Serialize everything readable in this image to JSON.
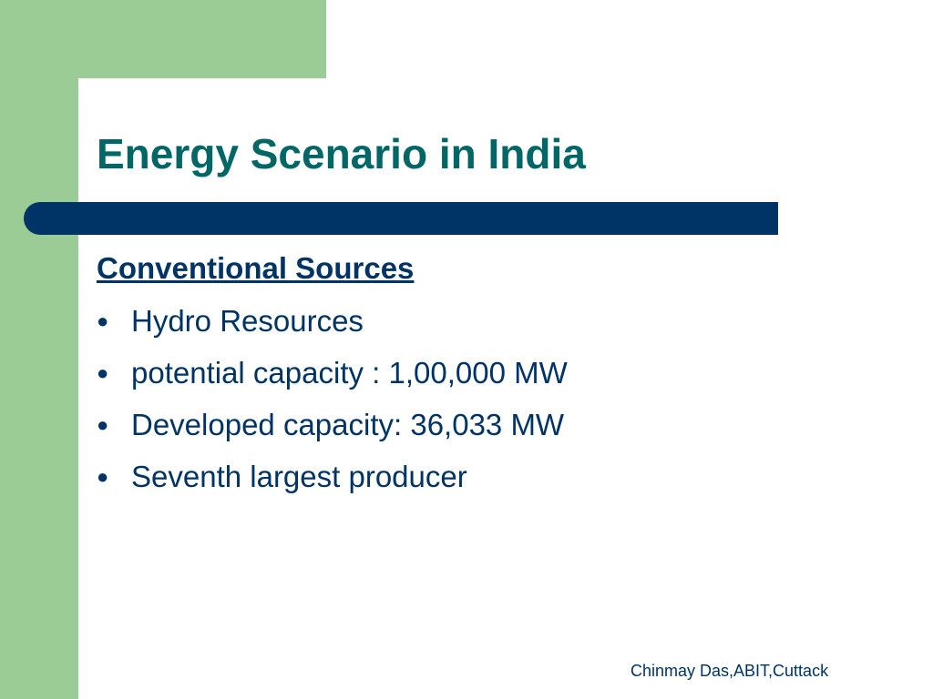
{
  "slide": {
    "title": "Energy Scenario in India",
    "heading": "Conventional Sources",
    "bullets": [
      "Hydro Resources",
      "potential capacity : 1,00,000 MW",
      "Developed capacity: 36,033 MW",
      "Seventh largest producer"
    ],
    "footer": "Chinmay Das,ABIT,Cuttack"
  }
}
